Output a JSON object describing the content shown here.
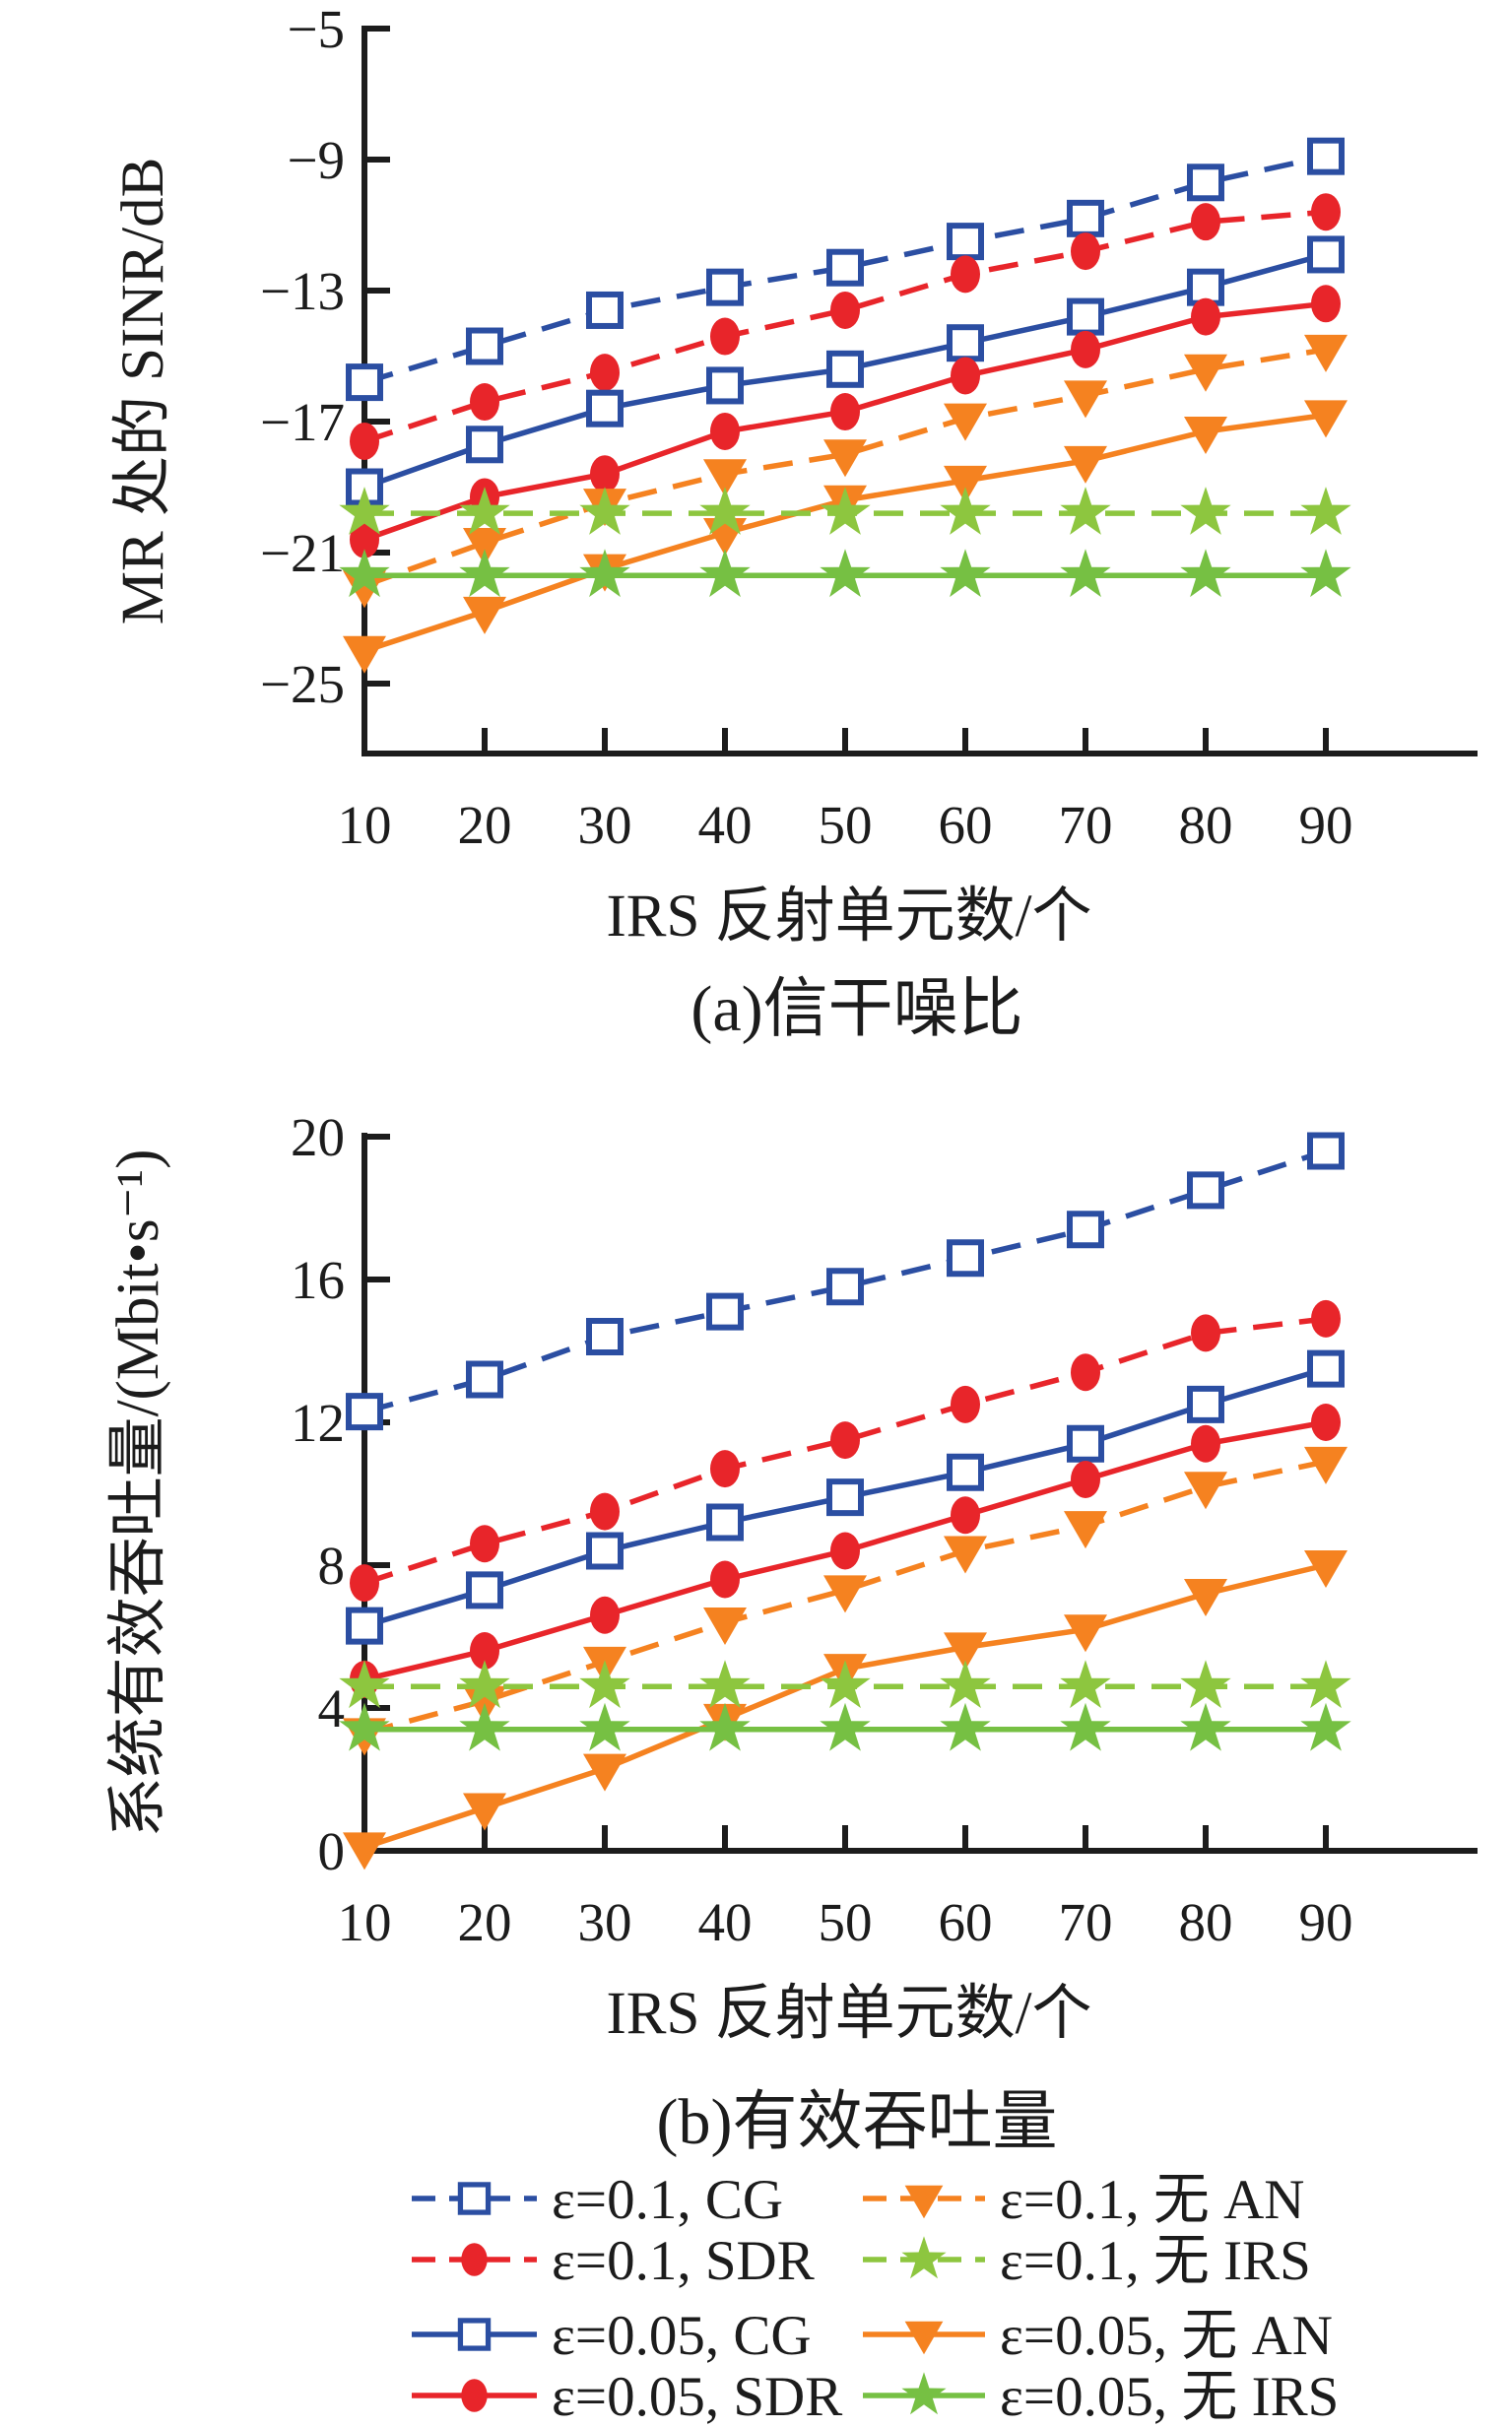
{
  "chart_data": [
    {
      "type": "line",
      "title": "(a)信干噪比",
      "xlabel": "IRS 反射单元数/个",
      "ylabel": "MR 处的 SINR/dB",
      "x": [
        10,
        20,
        30,
        40,
        50,
        60,
        70,
        80,
        90
      ],
      "xlim": [
        10,
        90
      ],
      "ylim": [
        -27,
        -5
      ],
      "yticks": [
        -5,
        -9,
        -13,
        -17,
        -21,
        -25
      ],
      "ytick_labels": [
        "−5",
        "−9",
        "−13",
        "−17",
        "−21",
        "−25"
      ],
      "xtick_labels": [
        "10",
        "20",
        "30",
        "40",
        "50",
        "60",
        "70",
        "80",
        "90"
      ],
      "grid": false,
      "legend_position": "below-figure",
      "series": [
        {
          "name": "ε=0.1, CG",
          "color": "#2b4ea2",
          "linestyle": "dashed",
          "marker": "square-open",
          "values": [
            -15.8,
            -14.7,
            -13.6,
            -12.9,
            -12.3,
            -11.5,
            -10.8,
            -9.7,
            -8.9
          ]
        },
        {
          "name": "ε=0.1, SDR",
          "color": "#e8252a",
          "linestyle": "dashed",
          "marker": "circle",
          "values": [
            -17.6,
            -16.4,
            -15.5,
            -14.4,
            -13.6,
            -12.5,
            -11.8,
            -10.9,
            -10.6
          ]
        },
        {
          "name": "ε=0.05, CG",
          "color": "#2b4ea2",
          "linestyle": "solid",
          "marker": "square-open",
          "values": [
            -19.0,
            -17.7,
            -16.6,
            -15.9,
            -15.4,
            -14.6,
            -13.8,
            -12.9,
            -11.9
          ]
        },
        {
          "name": "ε=0.05, SDR",
          "color": "#e8252a",
          "linestyle": "solid",
          "marker": "circle",
          "values": [
            -20.6,
            -19.3,
            -18.6,
            -17.3,
            -16.7,
            -15.6,
            -14.8,
            -13.8,
            -13.4
          ]
        },
        {
          "name": "ε=0.1, 无 AN",
          "color": "#f58220",
          "linestyle": "dashed",
          "marker": "triangle-down",
          "values": [
            -22.0,
            -20.7,
            -19.5,
            -18.6,
            -18.0,
            -16.9,
            -16.2,
            -15.4,
            -14.8
          ]
        },
        {
          "name": "ε=0.05, 无 AN",
          "color": "#f58220",
          "linestyle": "solid",
          "marker": "triangle-down",
          "values": [
            -24.0,
            -22.8,
            -21.5,
            -20.4,
            -19.4,
            -18.8,
            -18.2,
            -17.3,
            -16.8
          ]
        },
        {
          "name": "ε=0.1, 无 IRS",
          "color": "#8dc63f",
          "linestyle": "dashed",
          "marker": "star",
          "values": [
            -19.8,
            -19.8,
            -19.8,
            -19.8,
            -19.8,
            -19.8,
            -19.8,
            -19.8,
            -19.8
          ]
        },
        {
          "name": "ε=0.05, 无 IRS",
          "color": "#76c043",
          "linestyle": "solid",
          "marker": "star",
          "values": [
            -21.7,
            -21.7,
            -21.7,
            -21.7,
            -21.7,
            -21.7,
            -21.7,
            -21.7,
            -21.7
          ]
        }
      ]
    },
    {
      "type": "line",
      "title": "(b)有效吞吐量",
      "xlabel": "IRS 反射单元数/个",
      "ylabel": "系统有效吞吐量/(Mbit•s⁻¹)",
      "x": [
        10,
        20,
        30,
        40,
        50,
        60,
        70,
        80,
        90
      ],
      "xlim": [
        10,
        90
      ],
      "ylim": [
        0,
        20
      ],
      "yticks": [
        20,
        16,
        12,
        8,
        4,
        0
      ],
      "ytick_labels": [
        "20",
        "16",
        "12",
        "8",
        "4",
        "0"
      ],
      "xtick_labels": [
        "10",
        "20",
        "30",
        "40",
        "50",
        "60",
        "70",
        "80",
        "90"
      ],
      "grid": false,
      "legend_position": "below-figure",
      "series": [
        {
          "name": "ε=0.1, CG",
          "color": "#2b4ea2",
          "linestyle": "dashed",
          "marker": "square-open",
          "values": [
            12.3,
            13.2,
            14.4,
            15.1,
            15.8,
            16.6,
            17.4,
            18.5,
            19.6
          ]
        },
        {
          "name": "ε=0.1, SDR",
          "color": "#e8252a",
          "linestyle": "dashed",
          "marker": "circle",
          "values": [
            7.5,
            8.6,
            9.5,
            10.7,
            11.5,
            12.5,
            13.4,
            14.5,
            14.9
          ]
        },
        {
          "name": "ε=0.05, CG",
          "color": "#2b4ea2",
          "linestyle": "solid",
          "marker": "square-open",
          "values": [
            6.3,
            7.3,
            8.4,
            9.2,
            9.9,
            10.6,
            11.4,
            12.5,
            13.5
          ]
        },
        {
          "name": "ε=0.05, SDR",
          "color": "#e8252a",
          "linestyle": "solid",
          "marker": "circle",
          "values": [
            4.8,
            5.6,
            6.6,
            7.6,
            8.4,
            9.4,
            10.4,
            11.4,
            12.0
          ]
        },
        {
          "name": "ε=0.1, 无 AN",
          "color": "#f58220",
          "linestyle": "dashed",
          "marker": "triangle-down",
          "values": [
            3.3,
            4.2,
            5.3,
            6.4,
            7.3,
            8.4,
            9.1,
            10.2,
            10.9
          ]
        },
        {
          "name": "ε=0.05, 无 AN",
          "color": "#f58220",
          "linestyle": "solid",
          "marker": "triangle-down",
          "values": [
            0.1,
            1.2,
            2.3,
            3.7,
            5.1,
            5.7,
            6.2,
            7.2,
            8.0
          ]
        },
        {
          "name": "ε=0.1, 无 IRS",
          "color": "#8dc63f",
          "linestyle": "dashed",
          "marker": "star",
          "values": [
            4.6,
            4.6,
            4.6,
            4.6,
            4.6,
            4.6,
            4.6,
            4.6,
            4.6
          ]
        },
        {
          "name": "ε=0.05, 无 IRS",
          "color": "#76c043",
          "linestyle": "solid",
          "marker": "star",
          "values": [
            3.4,
            3.4,
            3.4,
            3.4,
            3.4,
            3.4,
            3.4,
            3.4,
            3.4
          ]
        }
      ]
    }
  ],
  "legend": {
    "row_series": [
      [
        0,
        4
      ],
      [
        1,
        6
      ],
      [
        2,
        5
      ],
      [
        3,
        7
      ]
    ]
  },
  "colors": {
    "blue": "#2b4ea2",
    "red": "#e8252a",
    "orange": "#f58220",
    "green_dashed": "#8dc63f",
    "green_solid": "#76c043",
    "axis": "#1c1c1c"
  }
}
